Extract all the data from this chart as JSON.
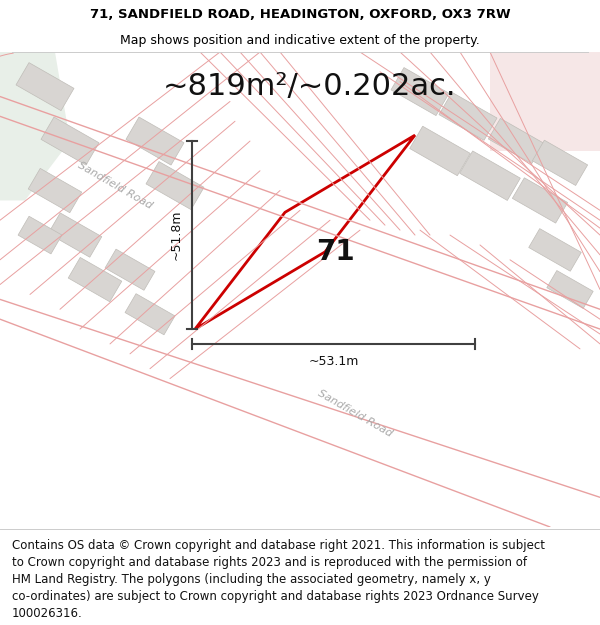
{
  "title_line1": "71, SANDFIELD ROAD, HEADINGTON, OXFORD, OX3 7RW",
  "title_line2": "Map shows position and indicative extent of the property.",
  "area_label": "~819m²/~0.202ac.",
  "width_label": "~53.1m",
  "height_label": "~51.8m",
  "plot_number": "71",
  "road_label1": "Sandfield Road",
  "road_label2": "Sandfield Road",
  "footer_lines": [
    "Contains OS data © Crown copyright and database right 2021. This information is subject",
    "to Crown copyright and database rights 2023 and is reproduced with the permission of",
    "HM Land Registry. The polygons (including the associated geometry, namely x, y",
    "co-ordinates) are subject to Crown copyright and database rights 2023 Ordnance Survey",
    "100026316."
  ],
  "map_bg": "#f8f8f6",
  "building_color": "#d8d5d2",
  "building_edge": "#c0bdb8",
  "road_line_color": "#e8a0a0",
  "road_fill_color": "#f0d8d8",
  "green_color": "#e8efe8",
  "red_outline_color": "#cc0000",
  "measurement_color": "#404040",
  "title_fontsize": 9.5,
  "subtitle_fontsize": 9.0,
  "area_fontsize": 22,
  "measurement_fontsize": 9,
  "plot_number_fontsize": 20,
  "road_label_fontsize": 8,
  "footer_fontsize": 8.5,
  "fig_width": 6.0,
  "fig_height": 6.25
}
